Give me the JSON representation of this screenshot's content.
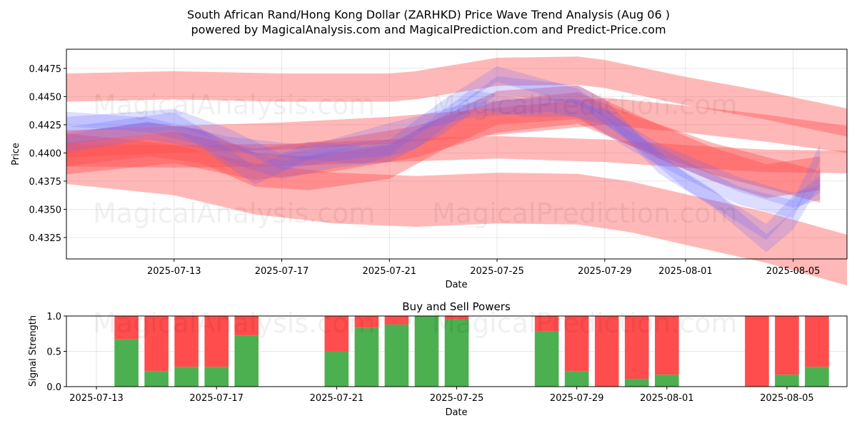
{
  "title_line1": "South African Rand/Hong Kong Dollar (ZARHKD) Price Wave Trend Analysis (Aug 06 )",
  "title_line2": "powered by MagicalAnalysis.com and MagicalPrediction.com and Predict-Price.com",
  "watermarks": {
    "a": "MagicalAnalysis.com",
    "b": "MagicalPrediction.com"
  },
  "colors": {
    "red_band": "#ff4d4d",
    "blue_band": "#6666ff",
    "buy": "#4caf50",
    "sell": "#ff4d4d"
  },
  "chart_data": [
    {
      "type": "line",
      "title": "",
      "xlabel": "Date",
      "ylabel": "Price",
      "x_range": [
        "2025-07-09",
        "2025-08-07"
      ],
      "ylim": [
        0.4306,
        0.4492
      ],
      "xticks": [
        "2025-07-13",
        "2025-07-17",
        "2025-07-21",
        "2025-07-25",
        "2025-07-29",
        "2025-08-01",
        "2025-08-05"
      ],
      "yticks": [
        "0.4325",
        "0.4350",
        "0.4375",
        "0.4400",
        "0.4425",
        "0.4450",
        "0.4475"
      ],
      "grid": true,
      "red_bands": [
        {
          "name": "upper-channel",
          "dates": [
            "2025-07-09",
            "2025-07-13",
            "2025-07-17",
            "2025-07-21",
            "2025-07-22",
            "2025-07-24",
            "2025-07-25",
            "2025-07-28",
            "2025-07-29",
            "2025-08-01",
            "2025-08-04",
            "2025-08-07"
          ],
          "values": [
            0.4458,
            0.446,
            0.4458,
            0.4458,
            0.446,
            0.4468,
            0.4472,
            0.4473,
            0.447,
            0.4455,
            0.4442,
            0.4427
          ],
          "width": 0.0025
        },
        {
          "name": "lower-channel",
          "dates": [
            "2025-07-09",
            "2025-07-13",
            "2025-07-16",
            "2025-07-19",
            "2025-07-22",
            "2025-07-25",
            "2025-07-28",
            "2025-07-30",
            "2025-08-01",
            "2025-08-04",
            "2025-08-07"
          ],
          "values": [
            0.4395,
            0.4385,
            0.4368,
            0.436,
            0.4357,
            0.436,
            0.4359,
            0.4352,
            0.4341,
            0.4325,
            0.4305
          ],
          "width": 0.0045
        },
        {
          "name": "mid-channel-1",
          "dates": [
            "2025-07-09",
            "2025-07-13",
            "2025-07-17",
            "2025-07-21",
            "2025-07-25",
            "2025-07-29",
            "2025-08-01",
            "2025-08-04",
            "2025-08-07"
          ],
          "values": [
            0.4408,
            0.4412,
            0.4415,
            0.442,
            0.4428,
            0.4437,
            0.443,
            0.4422,
            0.4412
          ],
          "width": 0.0024
        },
        {
          "name": "mid-channel-2",
          "dates": [
            "2025-07-09",
            "2025-07-13",
            "2025-07-17",
            "2025-07-21",
            "2025-07-25",
            "2025-07-29",
            "2025-08-01",
            "2025-08-04",
            "2025-08-07"
          ],
          "values": [
            0.4398,
            0.4397,
            0.4398,
            0.4402,
            0.4405,
            0.4402,
            0.4397,
            0.4393,
            0.4392
          ],
          "width": 0.002
        },
        {
          "name": "wave-1",
          "dates": [
            "2025-07-09",
            "2025-07-12",
            "2025-07-14",
            "2025-07-16",
            "2025-07-18",
            "2025-07-21",
            "2025-07-23",
            "2025-07-25",
            "2025-07-28",
            "2025-07-29",
            "2025-07-31",
            "2025-08-02",
            "2025-08-04",
            "2025-08-06"
          ],
          "values": [
            0.4403,
            0.4412,
            0.4406,
            0.4385,
            0.4382,
            0.4392,
            0.4418,
            0.444,
            0.4445,
            0.4432,
            0.441,
            0.439,
            0.4375,
            0.4382
          ],
          "width": 0.003
        },
        {
          "name": "wave-2",
          "dates": [
            "2025-07-09",
            "2025-07-13",
            "2025-07-16",
            "2025-07-19",
            "2025-07-22",
            "2025-07-25",
            "2025-07-28",
            "2025-07-30",
            "2025-08-02",
            "2025-08-06"
          ],
          "values": [
            0.4395,
            0.4405,
            0.439,
            0.4398,
            0.441,
            0.4432,
            0.444,
            0.442,
            0.4395,
            0.437
          ],
          "width": 0.0028
        }
      ],
      "blue_bands": [
        {
          "name": "wave-a",
          "dates": [
            "2025-07-09",
            "2025-07-13",
            "2025-07-15",
            "2025-07-17",
            "2025-07-19",
            "2025-07-21",
            "2025-07-23",
            "2025-07-25",
            "2025-07-28",
            "2025-07-29",
            "2025-07-31",
            "2025-08-02",
            "2025-08-04",
            "2025-08-05",
            "2025-08-06"
          ],
          "values": [
            0.4415,
            0.4428,
            0.44,
            0.4385,
            0.4395,
            0.44,
            0.4425,
            0.446,
            0.4452,
            0.444,
            0.439,
            0.436,
            0.432,
            0.434,
            0.438
          ],
          "width": 0.0016
        },
        {
          "name": "wave-b",
          "dates": [
            "2025-07-09",
            "2025-07-12",
            "2025-07-14",
            "2025-07-16",
            "2025-07-18",
            "2025-07-20",
            "2025-07-22",
            "2025-07-24",
            "2025-07-26",
            "2025-07-28",
            "2025-07-30",
            "2025-08-01",
            "2025-08-03",
            "2025-08-05",
            "2025-08-06"
          ],
          "values": [
            0.4408,
            0.442,
            0.4412,
            0.438,
            0.4402,
            0.4398,
            0.4412,
            0.4448,
            0.444,
            0.444,
            0.441,
            0.4385,
            0.4362,
            0.435,
            0.44
          ],
          "width": 0.0016
        },
        {
          "name": "wave-c",
          "dates": [
            "2025-07-09",
            "2025-07-13",
            "2025-07-15",
            "2025-07-17",
            "2025-07-19",
            "2025-07-21",
            "2025-07-23",
            "2025-07-25",
            "2025-07-28",
            "2025-07-30",
            "2025-08-01",
            "2025-08-03",
            "2025-08-04",
            "2025-08-05",
            "2025-08-06"
          ],
          "values": [
            0.4425,
            0.4432,
            0.4415,
            0.4392,
            0.44,
            0.4405,
            0.444,
            0.447,
            0.445,
            0.4415,
            0.4375,
            0.4345,
            0.433,
            0.4355,
            0.4372
          ],
          "width": 0.0014
        },
        {
          "name": "wave-d",
          "dates": [
            "2025-07-09",
            "2025-07-12",
            "2025-07-15",
            "2025-07-18",
            "2025-07-21",
            "2025-07-24",
            "2025-07-27",
            "2025-07-29",
            "2025-07-31",
            "2025-08-03",
            "2025-08-05",
            "2025-08-06"
          ],
          "values": [
            0.443,
            0.4425,
            0.4408,
            0.44,
            0.442,
            0.4438,
            0.4443,
            0.4432,
            0.4402,
            0.4372,
            0.4358,
            0.4365
          ],
          "width": 0.0013
        }
      ]
    },
    {
      "type": "bar",
      "title": "Buy and Sell Powers",
      "xlabel": "Date",
      "ylabel": "Signal Strength",
      "ylim": [
        0,
        1
      ],
      "x_range": [
        "2025-07-12",
        "2025-08-07"
      ],
      "xticks": [
        "2025-07-13",
        "2025-07-17",
        "2025-07-21",
        "2025-07-25",
        "2025-07-29",
        "2025-08-01",
        "2025-08-05"
      ],
      "yticks": [
        "0.0",
        "0.5",
        "1.0"
      ],
      "dates": [
        "2025-07-14",
        "2025-07-15",
        "2025-07-16",
        "2025-07-17",
        "2025-07-18",
        "2025-07-21",
        "2025-07-22",
        "2025-07-23",
        "2025-07-24",
        "2025-07-25",
        "2025-07-28",
        "2025-07-29",
        "2025-07-30",
        "2025-07-31",
        "2025-08-01",
        "2025-08-04",
        "2025-08-05",
        "2025-08-06"
      ],
      "buy": [
        0.67,
        0.22,
        0.28,
        0.28,
        0.72,
        0.5,
        0.83,
        0.88,
        1.0,
        0.95,
        0.78,
        0.22,
        0.0,
        0.11,
        0.17,
        0.0,
        0.17,
        0.28
      ],
      "sell": [
        0.33,
        0.78,
        0.72,
        0.72,
        0.28,
        0.5,
        0.17,
        0.12,
        0.0,
        0.05,
        0.22,
        0.78,
        1.0,
        0.89,
        0.83,
        1.0,
        0.83,
        0.72
      ]
    }
  ]
}
